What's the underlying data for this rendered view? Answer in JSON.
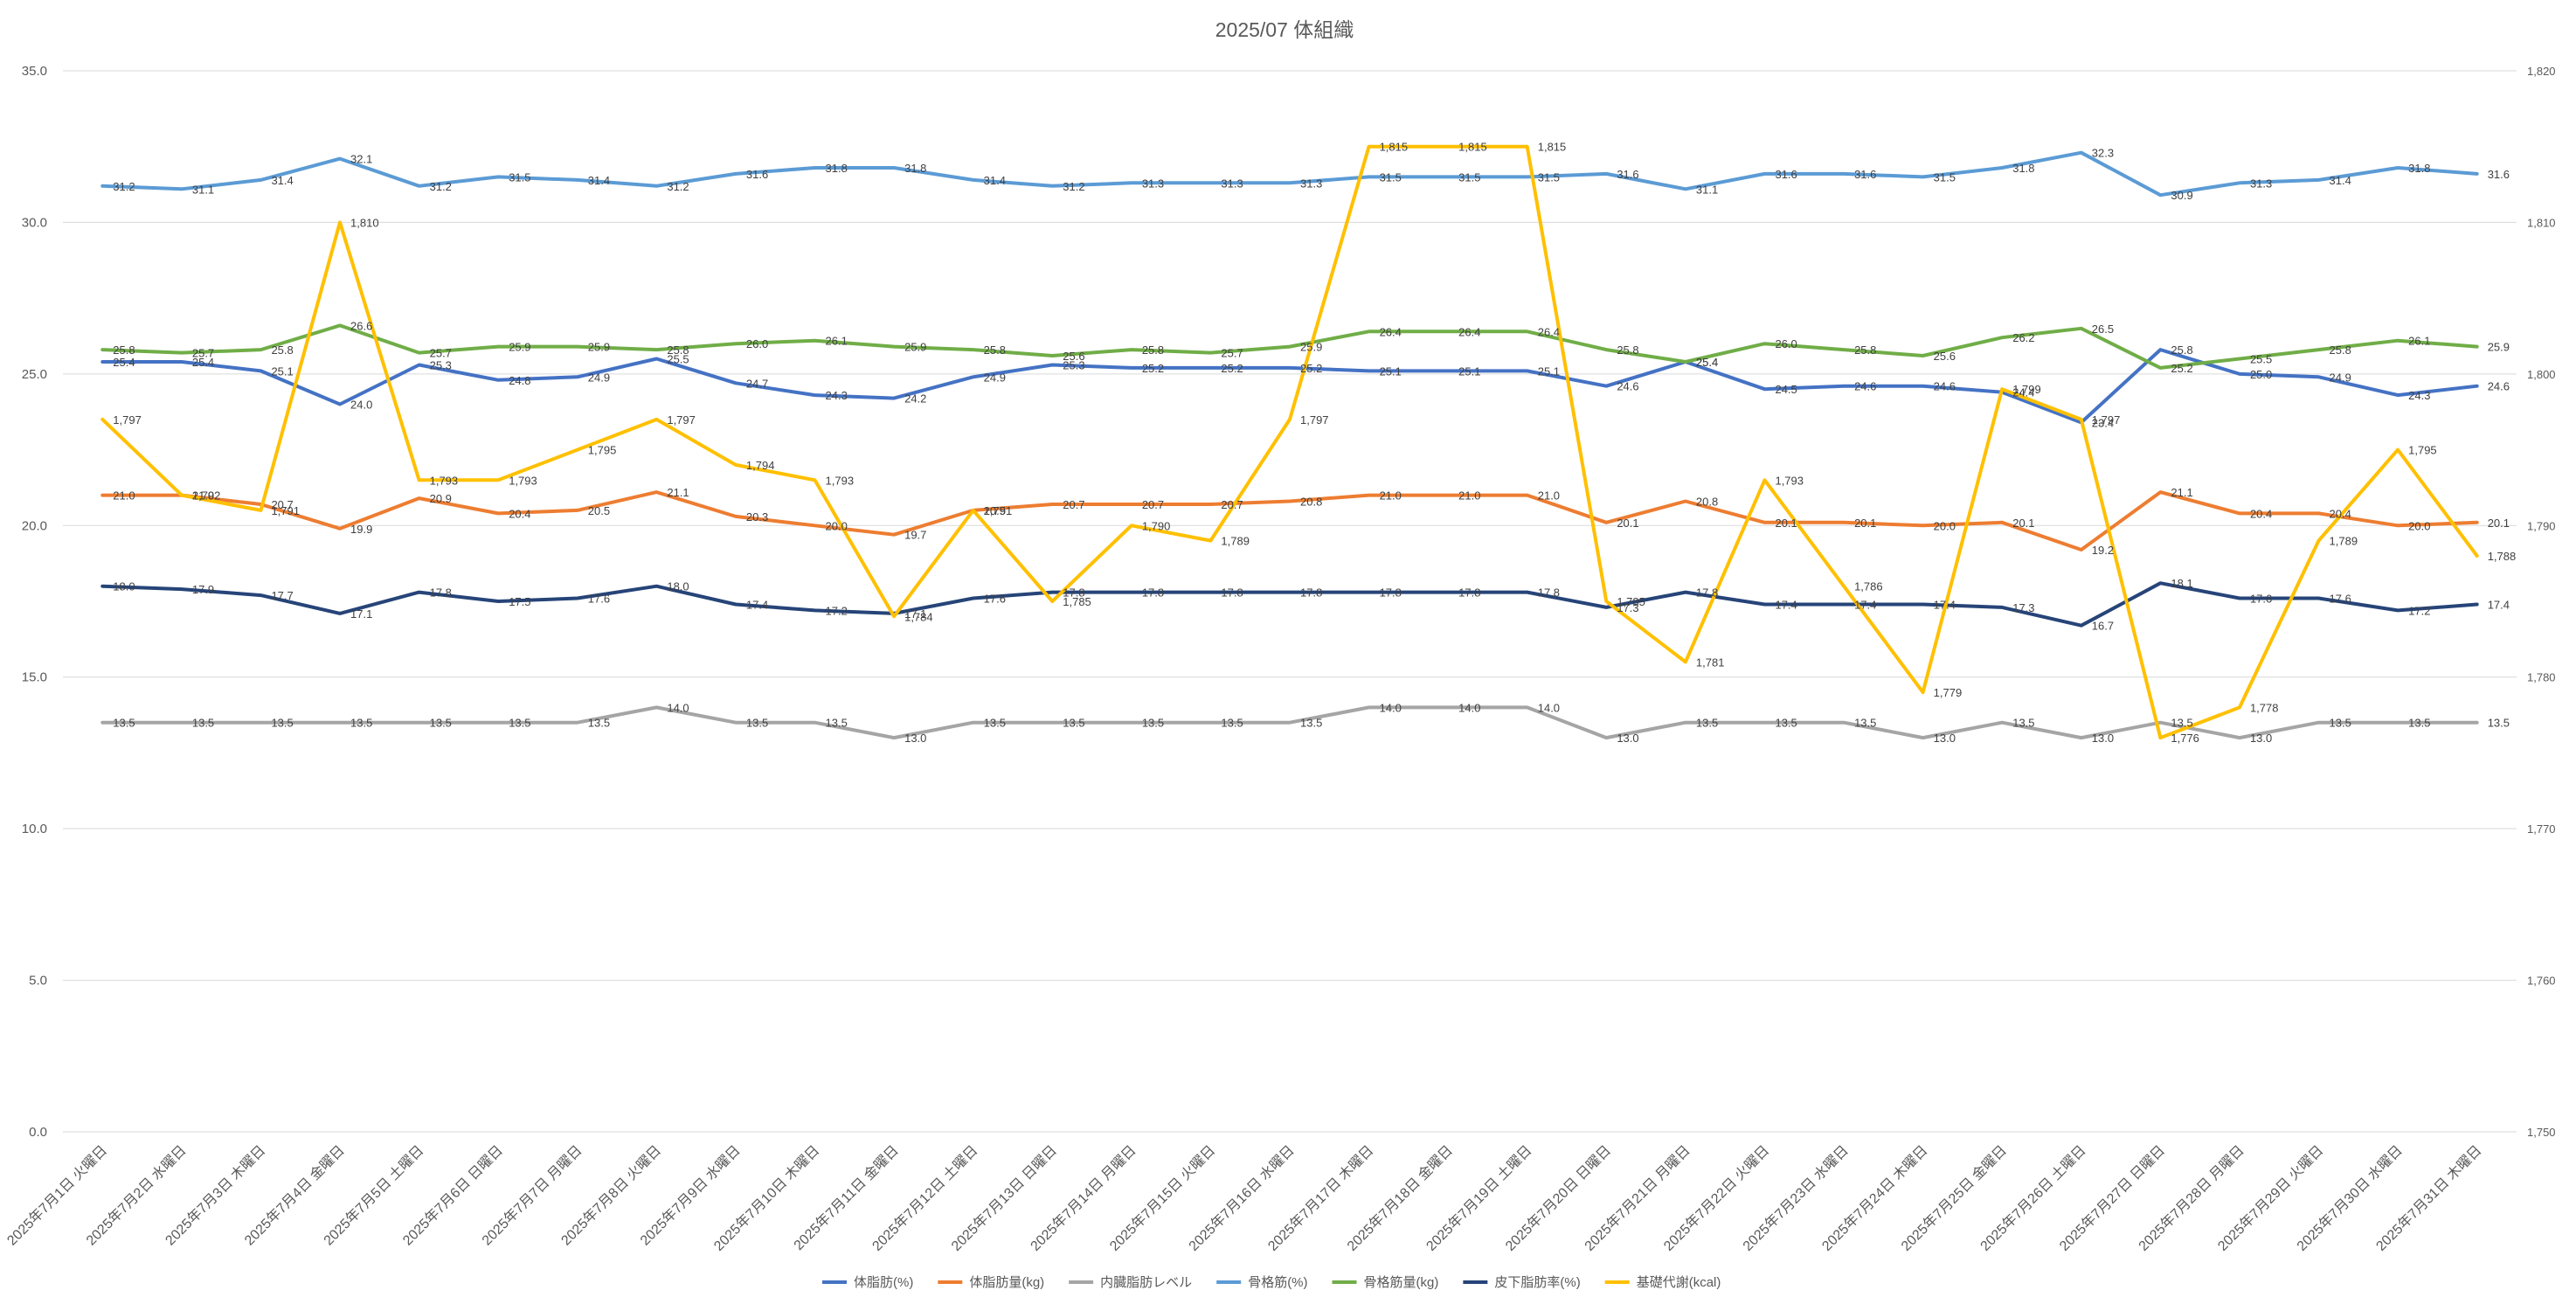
{
  "chart_data": {
    "type": "line",
    "title": "2025/07 体組織",
    "categories": [
      "2025年7月1日 火曜日",
      "2025年7月2日 水曜日",
      "2025年7月3日 木曜日",
      "2025年7月4日 金曜日",
      "2025年7月5日 土曜日",
      "2025年7月6日 日曜日",
      "2025年7月7日 月曜日",
      "2025年7月8日 火曜日",
      "2025年7月9日 水曜日",
      "2025年7月10日 木曜日",
      "2025年7月11日 金曜日",
      "2025年7月12日 土曜日",
      "2025年7月13日 日曜日",
      "2025年7月14日 月曜日",
      "2025年7月15日 火曜日",
      "2025年7月16日 水曜日",
      "2025年7月17日 木曜日",
      "2025年7月18日 金曜日",
      "2025年7月19日 土曜日",
      "2025年7月20日 日曜日",
      "2025年7月21日 月曜日",
      "2025年7月22日 火曜日",
      "2025年7月23日 水曜日",
      "2025年7月24日 木曜日",
      "2025年7月25日 金曜日",
      "2025年7月26日 土曜日",
      "2025年7月27日 日曜日",
      "2025年7月28日 月曜日",
      "2025年7月29日 火曜日",
      "2025年7月30日 水曜日",
      "2025年7月31日 木曜日"
    ],
    "y_left": {
      "min": 0,
      "max": 35,
      "step": 5,
      "ticks": [
        "0.0",
        "5.0",
        "10.0",
        "15.0",
        "20.0",
        "25.0",
        "30.0",
        "35.0"
      ]
    },
    "y_right": {
      "min": 1750,
      "max": 1820,
      "step": 10,
      "ticks": [
        "1,750",
        "1,760",
        "1,770",
        "1,780",
        "1,790",
        "1,800",
        "1,810",
        "1,820"
      ]
    },
    "legend_position": "bottom",
    "series": [
      {
        "name": "体脂肪(%)",
        "color": "#4472C4",
        "axis": "left",
        "decimals": 1,
        "values": [
          25.4,
          25.4,
          25.1,
          24.0,
          25.3,
          24.8,
          24.9,
          25.5,
          24.7,
          24.3,
          24.2,
          24.9,
          25.3,
          25.2,
          25.2,
          25.2,
          25.1,
          25.1,
          25.1,
          24.6,
          25.4,
          24.5,
          24.6,
          24.6,
          24.4,
          23.4,
          25.8,
          25.0,
          24.9,
          24.3,
          24.6
        ]
      },
      {
        "name": "体脂肪量(kg)",
        "color": "#ED7D31",
        "axis": "left",
        "decimals": 1,
        "values": [
          21.0,
          21.0,
          20.7,
          19.9,
          20.9,
          20.4,
          20.5,
          21.1,
          20.3,
          20.0,
          19.7,
          20.5,
          20.7,
          20.7,
          20.7,
          20.8,
          21.0,
          21.0,
          21.0,
          20.1,
          20.8,
          20.1,
          20.1,
          20.0,
          20.1,
          19.2,
          21.1,
          20.4,
          20.4,
          20.0,
          20.1
        ]
      },
      {
        "name": "内臓脂肪レベル",
        "color": "#A5A5A5",
        "axis": "left",
        "decimals": 1,
        "values": [
          13.5,
          13.5,
          13.5,
          13.5,
          13.5,
          13.5,
          13.5,
          14.0,
          13.5,
          13.5,
          13.0,
          13.5,
          13.5,
          13.5,
          13.5,
          13.5,
          14.0,
          14.0,
          14.0,
          13.0,
          13.5,
          13.5,
          13.5,
          13.0,
          13.5,
          13.0,
          13.5,
          13.0,
          13.5,
          13.5,
          13.5
        ]
      },
      {
        "name": "骨格筋(%)",
        "color": "#5B9BD5",
        "axis": "left",
        "decimals": 1,
        "values": [
          31.2,
          31.1,
          31.4,
          32.1,
          31.2,
          31.5,
          31.4,
          31.2,
          31.6,
          31.8,
          31.8,
          31.4,
          31.2,
          31.3,
          31.3,
          31.3,
          31.5,
          31.5,
          31.5,
          31.6,
          31.1,
          31.6,
          31.6,
          31.5,
          31.8,
          32.3,
          30.9,
          31.3,
          31.4,
          31.8,
          31.6
        ]
      },
      {
        "name": "骨格筋量(kg)",
        "color": "#70AD47",
        "axis": "left",
        "decimals": 1,
        "values": [
          25.8,
          25.7,
          25.8,
          26.6,
          25.7,
          25.9,
          25.9,
          25.8,
          26.0,
          26.1,
          25.9,
          25.8,
          25.6,
          25.8,
          25.7,
          25.9,
          26.4,
          26.4,
          26.4,
          25.8,
          25.4,
          26.0,
          25.8,
          25.6,
          26.2,
          26.5,
          25.2,
          25.5,
          25.8,
          26.1,
          25.9
        ]
      },
      {
        "name": "皮下脂肪率(%)",
        "color": "#264478",
        "axis": "left",
        "decimals": 1,
        "values": [
          18.0,
          17.9,
          17.7,
          17.1,
          17.8,
          17.5,
          17.6,
          18.0,
          17.4,
          17.2,
          17.1,
          17.6,
          17.8,
          17.8,
          17.8,
          17.8,
          17.8,
          17.8,
          17.8,
          17.3,
          17.8,
          17.4,
          17.4,
          17.4,
          17.3,
          16.7,
          18.1,
          17.6,
          17.6,
          17.2,
          17.4
        ]
      },
      {
        "name": "基礎代謝(kcal)",
        "color": "#FFC000",
        "axis": "right",
        "decimals": 0,
        "values": [
          1797,
          1792,
          1791,
          1810,
          1793,
          1793,
          1795,
          1797,
          1794,
          1793,
          1784,
          1791,
          1785,
          1790,
          1789,
          1797,
          1815,
          1815,
          1815,
          1785,
          1781,
          1793,
          1786,
          1779,
          1799,
          1797,
          1776,
          1778,
          1789,
          1795,
          1788
        ]
      }
    ]
  }
}
